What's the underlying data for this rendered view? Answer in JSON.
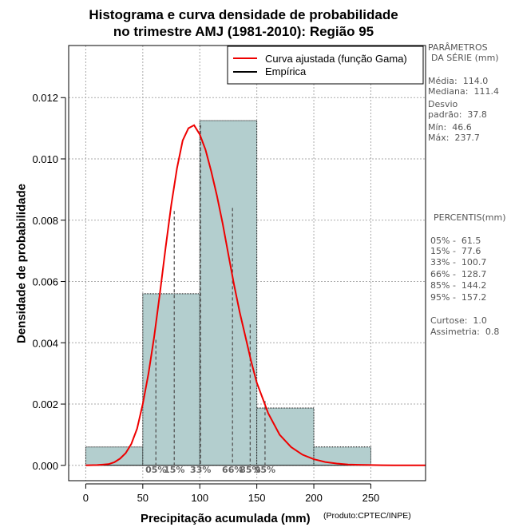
{
  "colors": {
    "bar_fill": "#b3cece",
    "curve": "#ee0000",
    "empirical": "#000000",
    "grid": "#aaaaaa",
    "side_text": "#555555"
  },
  "title": {
    "line1": "Histograma e curva densidade de probabilidade",
    "line2": "no trimestre AMJ (1981-2010): Região 95"
  },
  "legend": {
    "fitted": "Curva ajustada (função Gama)",
    "empirical": "Empírica"
  },
  "parameters": {
    "heading1": "PARÂMETROS",
    "heading2": "DA SÉRIE (mm)",
    "mean": "Média:  114.0",
    "median": "Mediana:  111.4",
    "sd1": "Desvio",
    "sd2": "padrão:  37.8",
    "min": "Mín:  46.6",
    "max": "Máx:  237.7"
  },
  "percentiles": {
    "heading": "PERCENTIS(mm)",
    "p05": "05% -  61.5",
    "p15": "15% -  77.6",
    "p33": "33% -  100.7",
    "p66": "66% -  128.7",
    "p85": "85% -  144.2",
    "p95": "95% -  157.2",
    "kurtosis": "Curtose:  1.0",
    "skewness": "Assimetria:  0.8"
  },
  "credit": "(Produto:CPTEC/INPE)",
  "chart_data": {
    "type": "bar",
    "title": "Histograma e curva densidade de probabilidade no trimestre AMJ (1981-2010): Região 95",
    "xlabel": "Precipitação acumulada (mm)",
    "ylabel": "Densidade de probabilidade",
    "xlim": [
      -15,
      298
    ],
    "ylim": [
      -0.0005,
      0.0137
    ],
    "grid": true,
    "legend_position": "top-right",
    "x_ticks": [
      0,
      50,
      100,
      150,
      200,
      250
    ],
    "x_tick_labels": [
      "0",
      "50",
      "100",
      "150",
      "200",
      "250"
    ],
    "y_ticks": [
      0,
      0.002,
      0.004,
      0.006,
      0.008,
      0.01,
      0.012
    ],
    "y_tick_labels": [
      "0.000",
      "0.002",
      "0.004",
      "0.006",
      "0.008",
      "0.010",
      "0.012"
    ],
    "bins": [
      {
        "from": 0,
        "to": 50,
        "density": 0.0006
      },
      {
        "from": 50,
        "to": 100,
        "density": 0.0056
      },
      {
        "from": 100,
        "to": 150,
        "density": 0.01125
      },
      {
        "from": 150,
        "to": 200,
        "density": 0.00187
      },
      {
        "from": 200,
        "to": 250,
        "density": 0.0006
      }
    ],
    "fitted_curve": {
      "distribution": "gamma",
      "x": [
        0,
        10,
        20,
        25,
        30,
        35,
        40,
        45,
        50,
        55,
        60,
        65,
        70,
        75,
        80,
        85,
        90,
        95,
        100,
        105,
        110,
        115,
        120,
        125,
        130,
        135,
        140,
        145,
        150,
        155,
        160,
        170,
        180,
        190,
        200,
        210,
        220,
        230,
        240,
        250,
        260,
        270,
        280,
        290,
        298
      ],
      "y": [
        0,
        1e-05,
        4e-05,
        0.0001,
        0.00022,
        0.0004,
        0.0007,
        0.0012,
        0.002,
        0.003,
        0.0042,
        0.0056,
        0.0071,
        0.0085,
        0.0097,
        0.0106,
        0.011,
        0.0111,
        0.0108,
        0.0103,
        0.0096,
        0.0088,
        0.0079,
        0.0069,
        0.0059,
        0.005,
        0.0042,
        0.0034,
        0.0027,
        0.0022,
        0.0017,
        0.001,
        0.0006,
        0.00035,
        0.0002,
        0.00011,
        6e-05,
        3e-05,
        1.8e-05,
        1e-05,
        5e-06,
        3e-06,
        1e-06,
        5e-07,
        0
      ]
    },
    "percentile_markers": [
      {
        "label": "05%",
        "x": 61.5,
        "y": 0.0041
      },
      {
        "label": "15%",
        "x": 77.6,
        "y": 0.0083
      },
      {
        "label": "33%",
        "x": 100.7,
        "y": 0.0111
      },
      {
        "label": "66%",
        "x": 128.7,
        "y": 0.0084
      },
      {
        "label": "85%",
        "x": 144.2,
        "y": 0.0046
      },
      {
        "label": "95%",
        "x": 157.2,
        "y": 0.0021
      }
    ]
  }
}
